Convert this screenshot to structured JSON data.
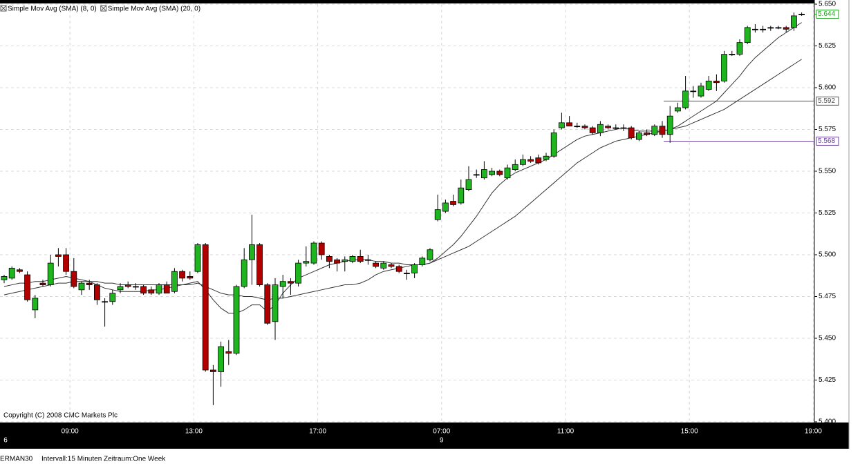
{
  "chart_data": {
    "type": "candlestick",
    "series": [
      {
        "name": "Simple Mov Avg (SMA) (8, 0)",
        "color": "#333333",
        "values": [
          5.481,
          5.482,
          5.483,
          5.483,
          5.484,
          5.484,
          5.485,
          5.486,
          5.487,
          5.486,
          5.485,
          5.484,
          5.482,
          5.48,
          5.479,
          5.478,
          5.478,
          5.478,
          5.478,
          5.479,
          5.479,
          5.48,
          5.481,
          5.482,
          5.483,
          5.484,
          5.479,
          5.473,
          5.468,
          5.465,
          5.465,
          5.467,
          5.47,
          5.47,
          5.466,
          5.47,
          5.477,
          5.482,
          5.486,
          5.488,
          5.49,
          5.492,
          5.494,
          5.495,
          5.496,
          5.497,
          5.497,
          5.497,
          5.496,
          5.496,
          5.495,
          5.495,
          5.494,
          5.494,
          5.494,
          5.495,
          5.498,
          5.502,
          5.506,
          5.511,
          5.517,
          5.523,
          5.53,
          5.537,
          5.542,
          5.546,
          5.549,
          5.551,
          5.553,
          5.555,
          5.557,
          5.56,
          5.563,
          5.566,
          5.569,
          5.571,
          5.572,
          5.573,
          5.574,
          5.575,
          5.576,
          5.575,
          5.574,
          5.574,
          5.574,
          5.574,
          5.575,
          5.577,
          5.58,
          5.583,
          5.586,
          5.589,
          5.592,
          5.597,
          5.602,
          5.607,
          5.613,
          5.618,
          5.622,
          5.626,
          5.63,
          5.633,
          5.636,
          5.639,
          null,
          null
        ]
      },
      {
        "name": "Simple Mov Avg (SMA) (20, 0)",
        "color": "#333333",
        "values": [
          5.476,
          5.477,
          5.478,
          5.479,
          5.48,
          5.481,
          5.482,
          5.483,
          5.483,
          5.484,
          5.484,
          5.484,
          5.484,
          5.483,
          5.483,
          5.482,
          5.482,
          5.482,
          5.482,
          5.482,
          5.482,
          5.482,
          5.482,
          5.482,
          5.482,
          5.483,
          5.481,
          5.479,
          5.477,
          5.476,
          5.476,
          5.475,
          5.475,
          5.474,
          5.473,
          5.474,
          5.474,
          5.475,
          5.476,
          5.477,
          5.478,
          5.479,
          5.48,
          5.481,
          5.482,
          5.482,
          5.483,
          5.485,
          5.488,
          5.49,
          5.491,
          5.492,
          5.493,
          5.494,
          5.494,
          5.495,
          5.497,
          5.499,
          5.501,
          5.503,
          5.505,
          5.508,
          5.511,
          5.514,
          5.517,
          5.52,
          5.523,
          5.527,
          5.531,
          5.535,
          5.539,
          5.543,
          5.547,
          5.551,
          5.555,
          5.558,
          5.561,
          5.564,
          5.566,
          5.568,
          5.569,
          5.57,
          5.571,
          5.572,
          5.573,
          5.574,
          5.575,
          5.576,
          5.577,
          5.579,
          5.581,
          5.583,
          5.585,
          5.587,
          5.59,
          5.593,
          5.596,
          5.599,
          5.602,
          5.605,
          5.608,
          5.611,
          5.614,
          5.617,
          null,
          null
        ]
      }
    ],
    "ohlc": [
      [
        5.485,
        5.488,
        5.483,
        5.487
      ],
      [
        5.486,
        5.493,
        5.485,
        5.492
      ],
      [
        5.491,
        5.492,
        5.489,
        5.49
      ],
      [
        5.488,
        5.49,
        5.472,
        5.473
      ],
      [
        5.467,
        5.476,
        5.462,
        5.474
      ],
      [
        5.483,
        5.485,
        5.481,
        5.482
      ],
      [
        5.482,
        5.5,
        5.481,
        5.495
      ],
      [
        5.5,
        5.504,
        5.493,
        5.499
      ],
      [
        5.5,
        5.504,
        5.488,
        5.49
      ],
      [
        5.49,
        5.498,
        5.48,
        5.481
      ],
      [
        5.479,
        5.484,
        5.476,
        5.483
      ],
      [
        5.483,
        5.485,
        5.479,
        5.482
      ],
      [
        5.482,
        5.483,
        5.47,
        5.473
      ],
      [
        5.472,
        5.474,
        5.457,
        5.472
      ],
      [
        5.472,
        5.479,
        5.47,
        5.477
      ],
      [
        5.479,
        5.483,
        5.477,
        5.481
      ],
      [
        5.482,
        5.484,
        5.48,
        5.481
      ],
      [
        5.481,
        5.483,
        5.479,
        5.481
      ],
      [
        5.481,
        5.482,
        5.476,
        5.477
      ],
      [
        5.479,
        5.481,
        5.476,
        5.477
      ],
      [
        5.477,
        5.483,
        5.476,
        5.482
      ],
      [
        5.482,
        5.484,
        5.477,
        5.477
      ],
      [
        5.478,
        5.492,
        5.477,
        5.49
      ],
      [
        5.49,
        5.491,
        5.484,
        5.486
      ],
      [
        5.487,
        5.49,
        5.485,
        5.486
      ],
      [
        5.49,
        5.507,
        5.489,
        5.506
      ],
      [
        5.506,
        5.507,
        5.43,
        5.431
      ],
      [
        5.431,
        5.434,
        5.41,
        5.43
      ],
      [
        5.43,
        5.448,
        5.421,
        5.445
      ],
      [
        5.442,
        5.449,
        5.434,
        5.441
      ],
      [
        5.441,
        5.482,
        5.44,
        5.481
      ],
      [
        5.481,
        5.504,
        5.48,
        5.497
      ],
      [
        5.497,
        5.524,
        5.482,
        5.506
      ],
      [
        5.506,
        5.507,
        5.481,
        5.482
      ],
      [
        5.482,
        5.483,
        5.458,
        5.459
      ],
      [
        5.46,
        5.486,
        5.449,
        5.482
      ],
      [
        5.481,
        5.488,
        5.474,
        5.484
      ],
      [
        5.484,
        5.486,
        5.476,
        5.483
      ],
      [
        5.483,
        5.497,
        5.481,
        5.495
      ],
      [
        5.495,
        5.505,
        5.493,
        5.496
      ],
      [
        5.495,
        5.508,
        5.494,
        5.507
      ],
      [
        5.507,
        5.508,
        5.497,
        5.5
      ],
      [
        5.499,
        5.5,
        5.492,
        5.496
      ],
      [
        5.497,
        5.498,
        5.49,
        5.495
      ],
      [
        5.496,
        5.499,
        5.49,
        5.497
      ],
      [
        5.496,
        5.5,
        5.495,
        5.499
      ],
      [
        5.499,
        5.503,
        5.495,
        5.496
      ],
      [
        5.497,
        5.5,
        5.494,
        5.497
      ],
      [
        5.495,
        5.496,
        5.492,
        5.493
      ],
      [
        5.492,
        5.496,
        5.491,
        5.495
      ],
      [
        5.494,
        5.495,
        5.492,
        5.493
      ],
      [
        5.493,
        5.494,
        5.489,
        5.49
      ],
      [
        5.489,
        5.491,
        5.485,
        5.489
      ],
      [
        5.489,
        5.495,
        5.486,
        5.494
      ],
      [
        5.494,
        5.499,
        5.493,
        5.498
      ],
      [
        5.497,
        5.504,
        5.496,
        5.503
      ],
      [
        5.521,
        5.536,
        5.52,
        5.527
      ],
      [
        5.526,
        5.533,
        5.525,
        5.531
      ],
      [
        5.532,
        5.536,
        5.529,
        5.53
      ],
      [
        5.531,
        5.545,
        5.53,
        5.54
      ],
      [
        5.539,
        5.553,
        5.538,
        5.545
      ],
      [
        5.548,
        5.551,
        5.546,
        5.548
      ],
      [
        5.546,
        5.556,
        5.545,
        5.551
      ],
      [
        5.548,
        5.552,
        5.547,
        5.55
      ],
      [
        5.55,
        5.551,
        5.547,
        5.548
      ],
      [
        5.546,
        5.554,
        5.545,
        5.552
      ],
      [
        5.551,
        5.557,
        5.55,
        5.554
      ],
      [
        5.554,
        5.56,
        5.553,
        5.557
      ],
      [
        5.557,
        5.559,
        5.555,
        5.556
      ],
      [
        5.558,
        5.56,
        5.554,
        5.555
      ],
      [
        5.557,
        5.561,
        5.556,
        5.559
      ],
      [
        5.559,
        5.575,
        5.558,
        5.573
      ],
      [
        5.576,
        5.585,
        5.575,
        5.579
      ],
      [
        5.579,
        5.583,
        5.577,
        5.577
      ],
      [
        5.577,
        5.579,
        5.576,
        5.577
      ],
      [
        5.577,
        5.578,
        5.575,
        5.576
      ],
      [
        5.576,
        5.577,
        5.572,
        5.573
      ],
      [
        5.573,
        5.58,
        5.571,
        5.578
      ],
      [
        5.577,
        5.578,
        5.575,
        5.576
      ],
      [
        5.576,
        5.578,
        5.575,
        5.576
      ],
      [
        5.576,
        5.578,
        5.574,
        5.576
      ],
      [
        5.576,
        5.577,
        5.569,
        5.57
      ],
      [
        5.569,
        5.574,
        5.568,
        5.573
      ],
      [
        5.573,
        5.575,
        5.571,
        5.572
      ],
      [
        5.572,
        5.578,
        5.571,
        5.577
      ],
      [
        5.577,
        5.58,
        5.57,
        5.572
      ],
      [
        5.572,
        5.589,
        5.567,
        5.583
      ],
      [
        5.586,
        5.591,
        5.585,
        5.588
      ],
      [
        5.588,
        5.607,
        5.587,
        5.598
      ],
      [
        5.598,
        5.601,
        5.594,
        5.598
      ],
      [
        5.595,
        5.603,
        5.594,
        5.601
      ],
      [
        5.599,
        5.607,
        5.598,
        5.604
      ],
      [
        5.604,
        5.608,
        5.598,
        5.603
      ],
      [
        5.604,
        5.622,
        5.603,
        5.62
      ],
      [
        5.62,
        5.622,
        5.619,
        5.62
      ],
      [
        5.62,
        5.629,
        5.619,
        5.627
      ],
      [
        5.627,
        5.637,
        5.626,
        5.636
      ],
      [
        5.635,
        5.638,
        5.633,
        5.635
      ],
      [
        5.635,
        5.637,
        5.633,
        5.635
      ],
      [
        5.636,
        5.637,
        5.634,
        5.636
      ],
      [
        5.636,
        5.637,
        5.635,
        5.636
      ],
      [
        5.636,
        5.637,
        5.633,
        5.635
      ],
      [
        5.636,
        5.645,
        5.634,
        5.643
      ],
      [
        5.644,
        5.645,
        5.643,
        5.644
      ],
      null,
      null
    ],
    "up_color": "#1fb51f",
    "down_color": "#b00000",
    "categories": [
      null,
      null,
      null,
      null,
      null,
      null,
      null,
      null,
      null,
      "09:00",
      null,
      null,
      null,
      null,
      null,
      null,
      null,
      null,
      null,
      null,
      null,
      null,
      null,
      null,
      null,
      "13:00",
      null,
      null,
      null,
      null,
      null,
      null,
      null,
      null,
      null,
      null,
      null,
      null,
      null,
      null,
      null,
      "17:00",
      null,
      null,
      null,
      null,
      null,
      null,
      null,
      null,
      null,
      null,
      null,
      null,
      null,
      null,
      null,
      "07:00",
      null,
      null,
      null,
      null,
      null,
      null,
      null,
      null,
      null,
      null,
      null,
      null,
      null,
      null,
      null,
      "11:00",
      null,
      null,
      null,
      null,
      null,
      null,
      null,
      null,
      null,
      null,
      null,
      null,
      null,
      null,
      null,
      "15:00",
      null,
      null,
      null,
      null,
      null,
      null,
      null,
      null,
      null,
      null,
      null,
      null,
      null,
      null,
      null,
      "19:00"
    ],
    "days": [
      "6",
      null,
      null,
      null,
      null,
      null,
      null,
      null,
      null,
      null,
      null,
      null,
      null,
      null,
      null,
      null,
      null,
      null,
      null,
      null,
      null,
      null,
      null,
      null,
      null,
      null,
      null,
      null,
      null,
      null,
      null,
      null,
      null,
      null,
      null,
      null,
      null,
      null,
      null,
      null,
      null,
      null,
      null,
      null,
      null,
      null,
      null,
      null,
      null,
      null,
      null,
      null,
      null,
      null,
      null,
      null,
      null,
      "9",
      null,
      null,
      null,
      null,
      null,
      null,
      null,
      null,
      null,
      null,
      null,
      null,
      null,
      null,
      null,
      null,
      null,
      null,
      null,
      null,
      null,
      null,
      null,
      null,
      null,
      null,
      null,
      null,
      null,
      null,
      null,
      null,
      null,
      null,
      null,
      null,
      null,
      null,
      null,
      null,
      null,
      null,
      null,
      null,
      null,
      null,
      null,
      null,
      null,
      null
    ],
    "ylim": [
      5.4,
      5.65
    ],
    "yticks": [
      {
        "value": 5.4,
        "label": "5.400"
      },
      {
        "value": 5.425,
        "label": "5.425"
      },
      {
        "value": 5.45,
        "label": "5.450"
      },
      {
        "value": 5.475,
        "label": "5.475"
      },
      {
        "value": 5.5,
        "label": "5.500"
      },
      {
        "value": 5.525,
        "label": "5.525"
      },
      {
        "value": 5.55,
        "label": "5.550"
      },
      {
        "value": 5.575,
        "label": "5.575"
      },
      {
        "value": 5.6,
        "label": "5.600"
      },
      {
        "value": 5.625,
        "label": "5.625"
      },
      {
        "value": 5.65,
        "label": "5.650"
      }
    ],
    "grid": true,
    "current_price": 5.644,
    "current_color": "#1fa01f",
    "levels": [
      5.592,
      5.568
    ],
    "level_colors": [
      "#555555",
      "#6a3fa0"
    ],
    "copyright": "Copyright (C) 2008 CMC Markets Plc",
    "status": [
      "ERMAN30",
      "Intervall:15 Minuten",
      "Zeitraum:One Week"
    ]
  }
}
